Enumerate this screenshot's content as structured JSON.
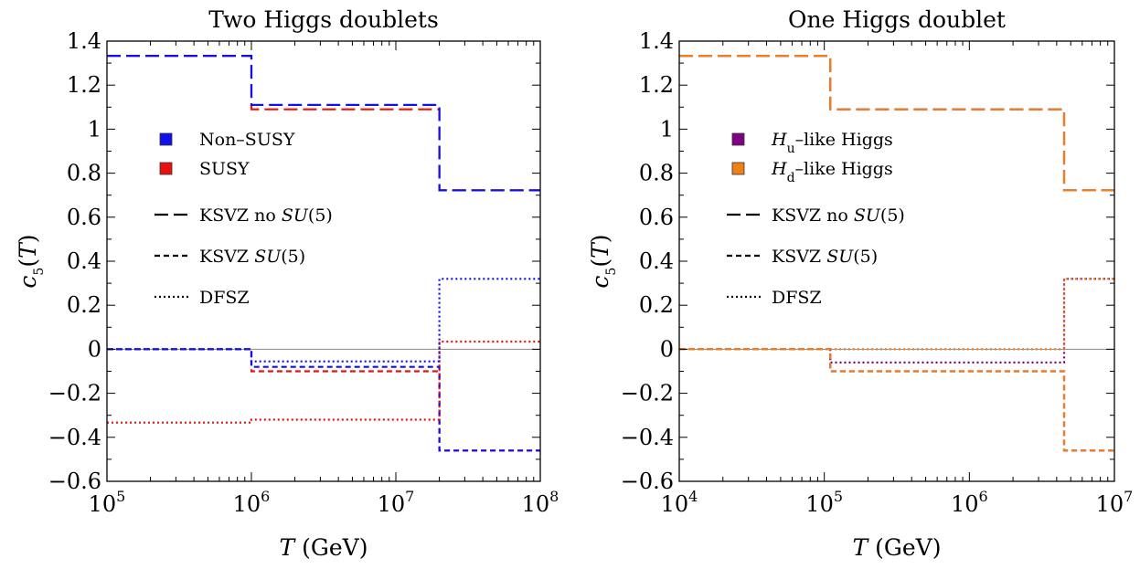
{
  "chart_data": [
    {
      "type": "line",
      "title": "Two Higgs doublets",
      "xlabel": "T (GeV)",
      "ylabel": "c5(T)",
      "xscale": "log",
      "xlim": [
        100000,
        100000000
      ],
      "ylim": [
        -0.6,
        1.4
      ],
      "xtick_labels": [
        [
          "10",
          "5"
        ],
        [
          "10",
          "6"
        ],
        [
          "10",
          "7"
        ],
        [
          "10",
          "8"
        ]
      ],
      "ytick_labels": [
        "1.4",
        "1.2",
        "1",
        "0.8",
        "0.6",
        "0.4",
        "0.2",
        "0",
        "−0.2",
        "−0.4",
        "−0.6"
      ],
      "zero_line": true,
      "legend": {
        "placement": "center-left",
        "colors": [
          {
            "label": "Non–SUSY",
            "color": "#1010e8"
          },
          {
            "label": "SUSY",
            "color": "#e81010"
          }
        ],
        "styles": [
          {
            "label_parts": [
              "KSVZ no ",
              "SU",
              "(5)"
            ],
            "dash": "long"
          },
          {
            "label_parts": [
              "KSVZ ",
              "SU",
              "(5)"
            ],
            "dash": "short"
          },
          {
            "label_parts": [
              "DFSZ"
            ],
            "dash": "dot"
          }
        ]
      },
      "series": [
        {
          "color": "#e81010",
          "dash": "long",
          "steps": [
            [
              100000,
              1000000,
              1.333
            ],
            [
              1000000,
              20000000,
              1.09
            ],
            [
              20000000,
              100000000,
              0.722
            ]
          ]
        },
        {
          "color": "#1010e8",
          "dash": "long",
          "steps": [
            [
              100000,
              1000000,
              1.333
            ],
            [
              1000000,
              20000000,
              1.11
            ],
            [
              20000000,
              100000000,
              0.722
            ]
          ]
        },
        {
          "color": "#e81010",
          "dash": "short",
          "steps": [
            [
              100000,
              1000000,
              0.0
            ],
            [
              1000000,
              20000000,
              -0.1
            ],
            [
              20000000,
              100000000,
              -0.46
            ]
          ]
        },
        {
          "color": "#1010e8",
          "dash": "short",
          "steps": [
            [
              100000,
              1000000,
              0.0
            ],
            [
              1000000,
              20000000,
              -0.08
            ],
            [
              20000000,
              100000000,
              -0.46
            ]
          ]
        },
        {
          "color": "#e81010",
          "dash": "dot",
          "steps": [
            [
              100000,
              1000000,
              -0.333
            ],
            [
              1000000,
              20000000,
              -0.32
            ],
            [
              20000000,
              100000000,
              0.035
            ]
          ]
        },
        {
          "color": "#1010e8",
          "dash": "dot",
          "steps": [
            [
              100000,
              1000000,
              0.0
            ],
            [
              1000000,
              20000000,
              -0.055
            ],
            [
              20000000,
              100000000,
              0.32
            ]
          ]
        }
      ]
    },
    {
      "type": "line",
      "title": "One Higgs doublet",
      "xlabel": "T (GeV)",
      "ylabel": "c5(T)",
      "xscale": "log",
      "xlim": [
        10000,
        10000000
      ],
      "ylim": [
        -0.6,
        1.4
      ],
      "xtick_labels": [
        [
          "10",
          "4"
        ],
        [
          "10",
          "5"
        ],
        [
          "10",
          "6"
        ],
        [
          "10",
          "7"
        ]
      ],
      "ytick_labels": [
        "1.4",
        "1.2",
        "1",
        "0.8",
        "0.6",
        "0.4",
        "0.2",
        "0",
        "−0.2",
        "−0.4",
        "−0.6"
      ],
      "zero_line": true,
      "legend": {
        "placement": "center-left",
        "colors": [
          {
            "label_parts": [
              "H",
              "u",
              "–like Higgs"
            ],
            "color": "#800080"
          },
          {
            "label_parts": [
              "H",
              "d",
              "–like Higgs"
            ],
            "color": "#f07f1a"
          }
        ],
        "styles": [
          {
            "label_parts": [
              "KSVZ no ",
              "SU",
              "(5)"
            ],
            "dash": "long"
          },
          {
            "label_parts": [
              "KSVZ ",
              "SU",
              "(5)"
            ],
            "dash": "short"
          },
          {
            "label_parts": [
              "DFSZ"
            ],
            "dash": "dot"
          }
        ]
      },
      "series": [
        {
          "color": "#800080",
          "dash": "dot",
          "steps": [
            [
              10000,
              110000,
              0.0
            ],
            [
              110000,
              4500000,
              -0.06
            ],
            [
              4500000,
              10000000,
              0.32
            ]
          ]
        },
        {
          "color": "#800080",
          "dash": "long",
          "steps": [
            [
              10000,
              110000,
              1.333
            ],
            [
              110000,
              4500000,
              1.09
            ],
            [
              4500000,
              10000000,
              0.722
            ]
          ]
        },
        {
          "color": "#800080",
          "dash": "short",
          "steps": [
            [
              10000,
              110000,
              0.0
            ],
            [
              110000,
              4500000,
              -0.1
            ],
            [
              4500000,
              10000000,
              -0.46
            ]
          ]
        },
        {
          "color": "#f07f1a",
          "dash": "long",
          "steps": [
            [
              10000,
              110000,
              1.333
            ],
            [
              110000,
              4500000,
              1.09
            ],
            [
              4500000,
              10000000,
              0.722
            ]
          ]
        },
        {
          "color": "#f07f1a",
          "dash": "short",
          "steps": [
            [
              10000,
              110000,
              0.0
            ],
            [
              110000,
              4500000,
              -0.1
            ],
            [
              4500000,
              10000000,
              -0.46
            ]
          ]
        },
        {
          "color": "#f07f1a",
          "dash": "dot",
          "steps": [
            [
              10000,
              110000,
              0.0
            ],
            [
              110000,
              4500000,
              0.0
            ],
            [
              4500000,
              10000000,
              0.32
            ]
          ]
        }
      ]
    }
  ]
}
